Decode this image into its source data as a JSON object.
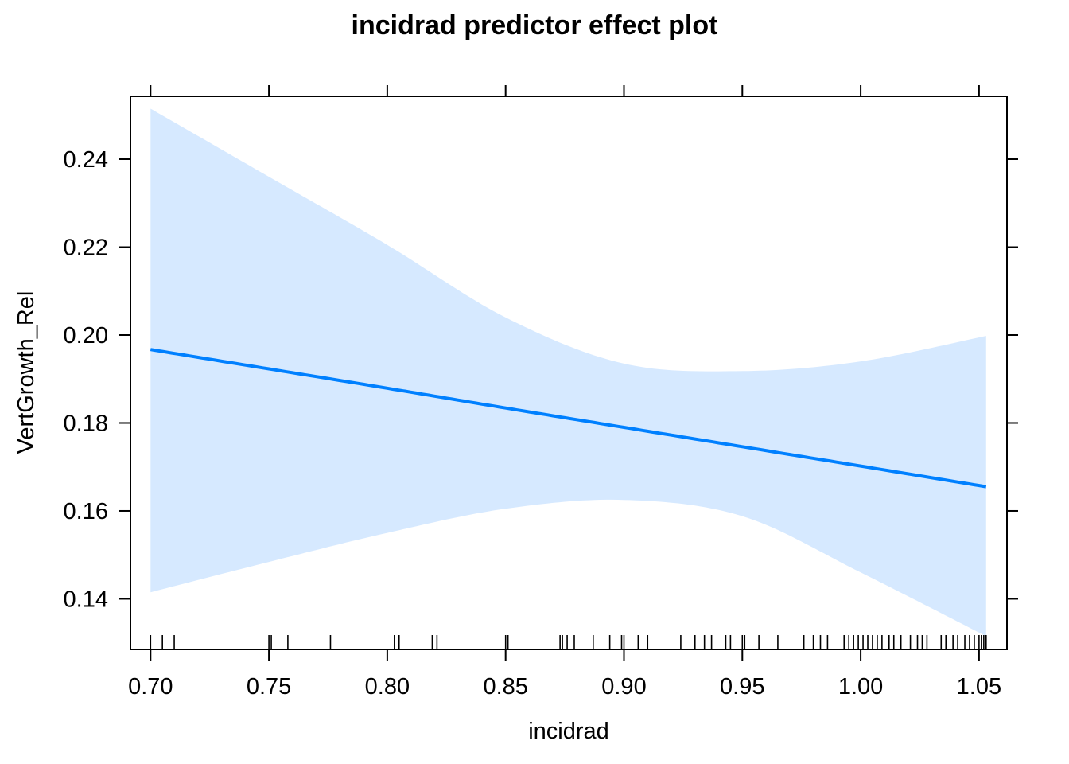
{
  "chart_data": {
    "type": "line",
    "title": "incidrad predictor effect plot",
    "xlabel": "incidrad",
    "ylabel": "VertGrowth_Rel",
    "xlim": [
      0.6915,
      1.0618
    ],
    "ylim": [
      0.1285,
      0.2543
    ],
    "x_ticks": [
      0.7,
      0.75,
      0.8,
      0.85,
      0.9,
      0.95,
      1.0,
      1.05
    ],
    "x_tick_labels": [
      "0.70",
      "0.75",
      "0.80",
      "0.85",
      "0.90",
      "0.95",
      "1.00",
      "1.05"
    ],
    "y_ticks": [
      0.14,
      0.16,
      0.18,
      0.2,
      0.22,
      0.24
    ],
    "y_tick_labels": [
      "0.14",
      "0.16",
      "0.18",
      "0.20",
      "0.22",
      "0.24"
    ],
    "grid": false,
    "colors": {
      "line": "#0080ff",
      "band": "#d6e9ff",
      "axis": "#000000"
    },
    "series": [
      {
        "x": [
          0.7,
          0.75,
          0.8,
          0.85,
          0.9,
          0.95,
          1.0,
          1.053
        ],
        "fit": [
          0.1967,
          0.1923,
          0.1879,
          0.1834,
          0.179,
          0.1746,
          0.1702,
          0.1655
        ],
        "lower": [
          0.1415,
          0.1484,
          0.155,
          0.1605,
          0.1625,
          0.1588,
          0.146,
          0.1315
        ],
        "upper": [
          0.2515,
          0.236,
          0.2205,
          0.204,
          0.1935,
          0.1918,
          0.194,
          0.1998
        ]
      }
    ],
    "rug": [
      0.7,
      0.705,
      0.71,
      0.75,
      0.751,
      0.758,
      0.776,
      0.803,
      0.805,
      0.819,
      0.821,
      0.85,
      0.851,
      0.873,
      0.874,
      0.876,
      0.879,
      0.887,
      0.894,
      0.899,
      0.9,
      0.906,
      0.91,
      0.924,
      0.93,
      0.934,
      0.937,
      0.943,
      0.945,
      0.95,
      0.951,
      0.957,
      0.965,
      0.976,
      0.98,
      0.983,
      0.986,
      0.993,
      0.995,
      0.997,
      0.999,
      1.001,
      1.003,
      1.005,
      1.007,
      1.009,
      1.012,
      1.014,
      1.017,
      1.021,
      1.024,
      1.026,
      1.028,
      1.034,
      1.036,
      1.039,
      1.041,
      1.044,
      1.046,
      1.048,
      1.05,
      1.051,
      1.052,
      1.053
    ]
  }
}
